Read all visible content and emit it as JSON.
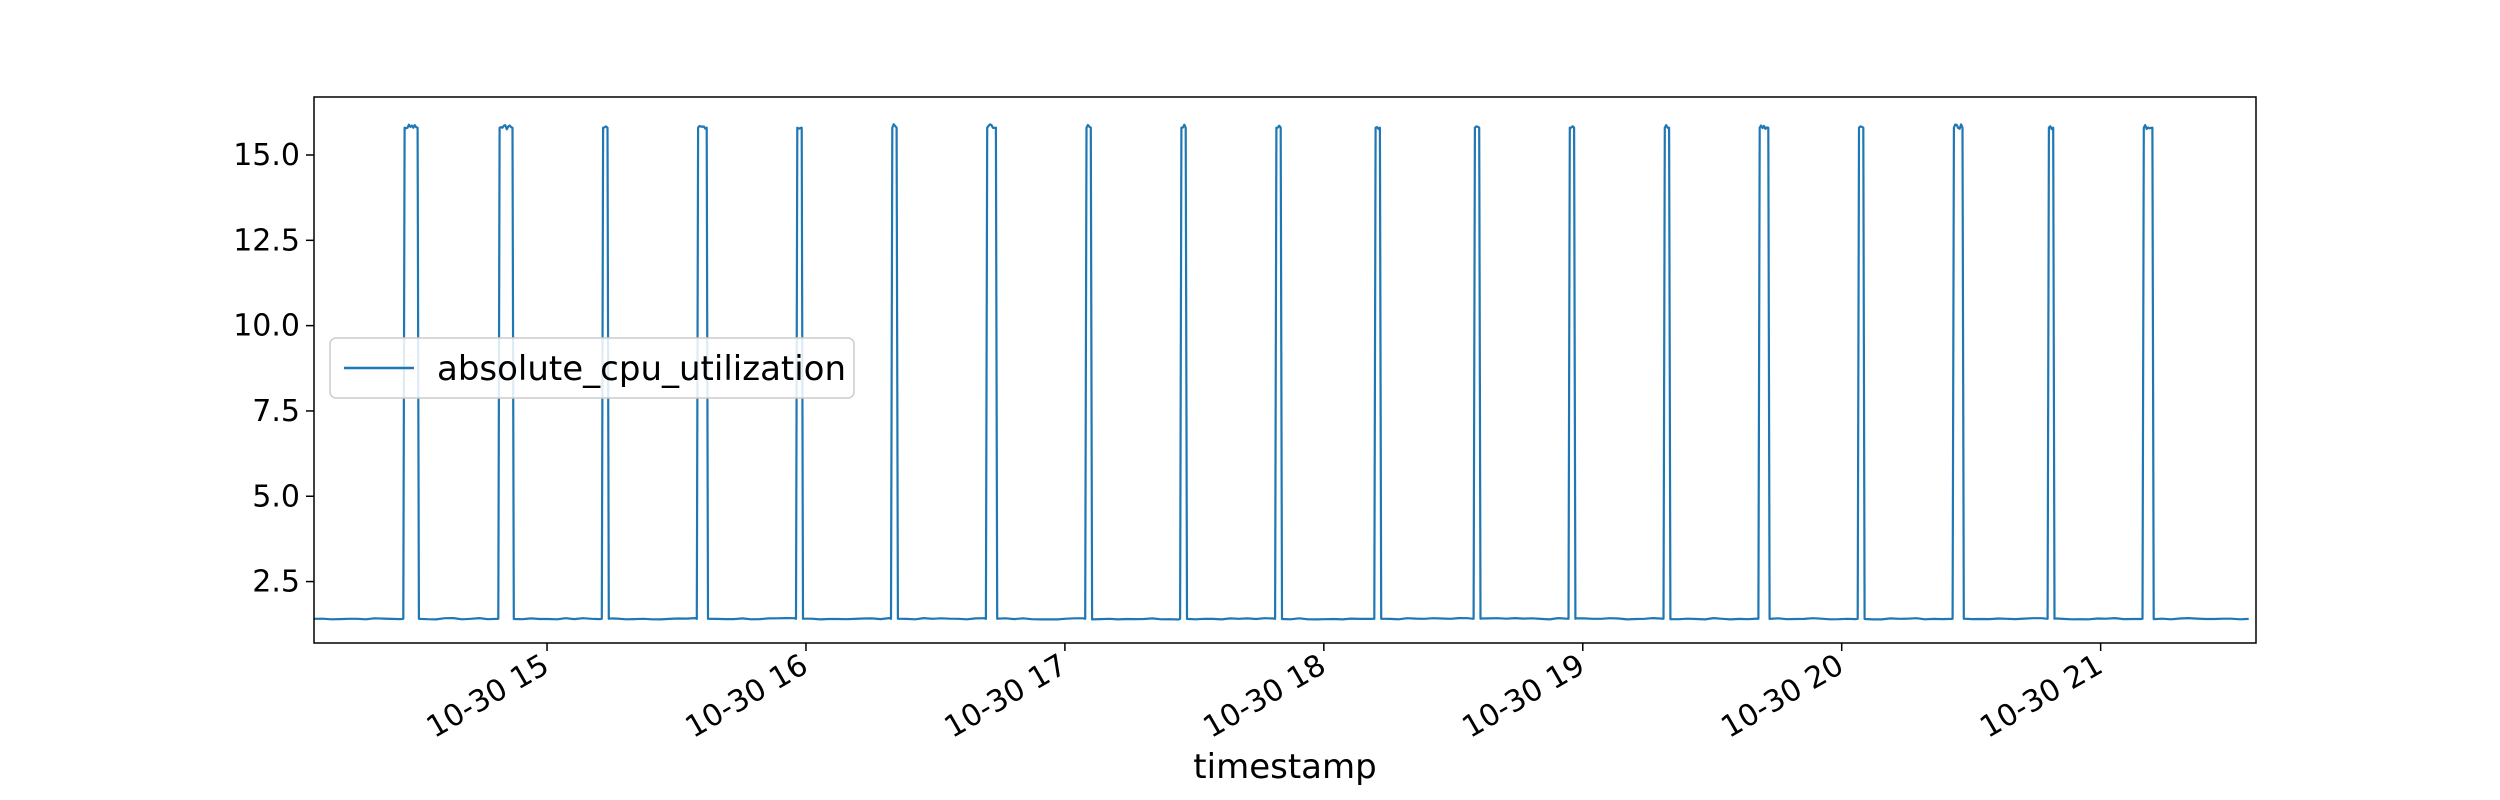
{
  "chart_data": {
    "type": "line",
    "title": "",
    "xlabel": "timestamp",
    "ylabel": "",
    "x_ticks": [
      {
        "t": "2013-10-30 15:00",
        "label": "10-30 15"
      },
      {
        "t": "2013-10-30 16:00",
        "label": "10-30 16"
      },
      {
        "t": "2013-10-30 17:00",
        "label": "10-30 17"
      },
      {
        "t": "2013-10-30 18:00",
        "label": "10-30 18"
      },
      {
        "t": "2013-10-30 19:00",
        "label": "10-30 19"
      },
      {
        "t": "2013-10-30 20:00",
        "label": "10-30 20"
      },
      {
        "t": "2013-10-30 21:00",
        "label": "10-30 21"
      }
    ],
    "y_ticks": [
      {
        "v": 2.5,
        "label": "2.5"
      },
      {
        "v": 5.0,
        "label": "5.0"
      },
      {
        "v": 7.5,
        "label": "7.5"
      },
      {
        "v": 10.0,
        "label": "10.0"
      },
      {
        "v": 12.5,
        "label": "12.5"
      },
      {
        "v": 15.0,
        "label": "15.0"
      }
    ],
    "xlim": [
      "2013-10-30 14:06",
      "2013-10-30 21:36"
    ],
    "ylim": [
      0.7,
      16.7
    ],
    "grid": false,
    "legend_position": "center-left",
    "series": [
      {
        "name": "absolute_cpu_utilization",
        "color": "#1f77b4",
        "baseline": 1.41,
        "peak": 15.9,
        "spike_intervals": [
          [
            "2013-10-30 14:27",
            "2013-10-30 14:30"
          ],
          [
            "2013-10-30 14:49",
            "2013-10-30 14:52"
          ],
          [
            "2013-10-30 15:13",
            "2013-10-30 15:14"
          ],
          [
            "2013-10-30 15:35",
            "2013-10-30 15:37"
          ],
          [
            "2013-10-30 15:58",
            "2013-10-30 15:59"
          ],
          [
            "2013-10-30 16:20",
            "2013-10-30 16:21"
          ],
          [
            "2013-10-30 16:42",
            "2013-10-30 16:44"
          ],
          [
            "2013-10-30 17:05",
            "2013-10-30 17:06"
          ],
          [
            "2013-10-30 17:27",
            "2013-10-30 17:28"
          ],
          [
            "2013-10-30 17:49",
            "2013-10-30 17:50"
          ],
          [
            "2013-10-30 18:12",
            "2013-10-30 18:13"
          ],
          [
            "2013-10-30 18:35",
            "2013-10-30 18:36"
          ],
          [
            "2013-10-30 18:57",
            "2013-10-30 18:58"
          ],
          [
            "2013-10-30 19:19",
            "2013-10-30 19:20"
          ],
          [
            "2013-10-30 19:41",
            "2013-10-30 19:43"
          ],
          [
            "2013-10-30 20:04",
            "2013-10-30 20:05"
          ],
          [
            "2013-10-30 20:26",
            "2013-10-30 20:28"
          ],
          [
            "2013-10-30 20:48",
            "2013-10-30 20:49"
          ],
          [
            "2013-10-30 21:10",
            "2013-10-30 21:12"
          ]
        ]
      }
    ]
  }
}
